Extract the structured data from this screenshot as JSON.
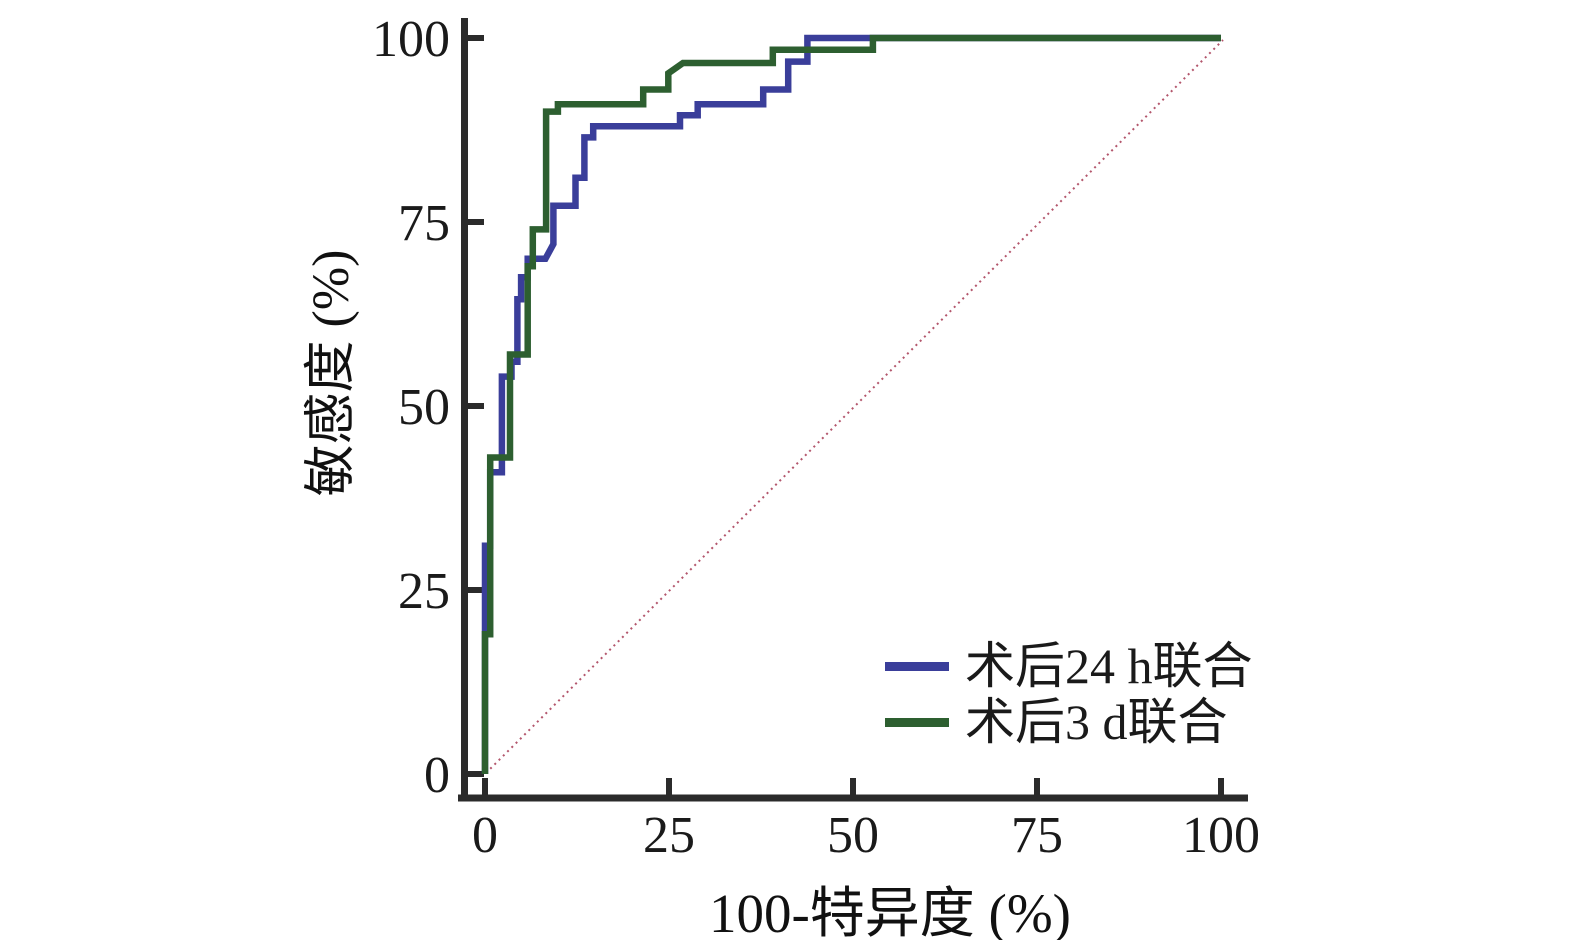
{
  "chart_data": {
    "type": "line",
    "subtype": "roc-step-curves",
    "title": "",
    "xlabel": "100-特异度 (%)",
    "ylabel": "敏感度 (%)",
    "xlim": [
      0,
      100
    ],
    "ylim": [
      0,
      100
    ],
    "x_ticks": [
      "0",
      "25",
      "50",
      "75",
      "100"
    ],
    "y_ticks": [
      "0",
      "25",
      "50",
      "75",
      "100"
    ],
    "x_tick_values": [
      0,
      25,
      50,
      75,
      100
    ],
    "y_tick_values": [
      0,
      25,
      50,
      75,
      100
    ],
    "grid": false,
    "legend_position": "lower-right",
    "axis_color": "#2b2b2b",
    "reference_line": {
      "name": "chance-diagonal",
      "from": [
        0,
        0
      ],
      "to": [
        100,
        100
      ],
      "color": "#b3566c",
      "style": "dotted"
    },
    "series": [
      {
        "name": "术后24 h联合",
        "color": "#3a3e9a",
        "points": [
          [
            0,
            0
          ],
          [
            0,
            31
          ],
          [
            0.7,
            31
          ],
          [
            0.7,
            41
          ],
          [
            2.3,
            41
          ],
          [
            2.3,
            54
          ],
          [
            3.6,
            54
          ],
          [
            3.6,
            56
          ],
          [
            4.4,
            56
          ],
          [
            4.4,
            64.5
          ],
          [
            4.9,
            64.5
          ],
          [
            4.9,
            67.5
          ],
          [
            5.8,
            67.5
          ],
          [
            5.8,
            70
          ],
          [
            8.2,
            70
          ],
          [
            9.3,
            72
          ],
          [
            9.3,
            77.2
          ],
          [
            12.3,
            77.2
          ],
          [
            12.3,
            81
          ],
          [
            13.5,
            81
          ],
          [
            13.5,
            86.5
          ],
          [
            14.7,
            86.5
          ],
          [
            14.7,
            88
          ],
          [
            26.5,
            88
          ],
          [
            26.5,
            89.5
          ],
          [
            28.9,
            89.5
          ],
          [
            28.9,
            91
          ],
          [
            37.8,
            91
          ],
          [
            37.8,
            93
          ],
          [
            41.2,
            93
          ],
          [
            41.2,
            96.8
          ],
          [
            43.8,
            96.8
          ],
          [
            43.8,
            100
          ],
          [
            100,
            100
          ]
        ]
      },
      {
        "name": "术后3 d联合",
        "color": "#2d5f30",
        "points": [
          [
            0,
            0
          ],
          [
            0,
            19
          ],
          [
            0.7,
            19
          ],
          [
            0.7,
            43
          ],
          [
            3.4,
            43
          ],
          [
            3.4,
            57
          ],
          [
            5.8,
            57
          ],
          [
            5.8,
            69
          ],
          [
            6.5,
            69
          ],
          [
            6.5,
            74
          ],
          [
            8.3,
            74
          ],
          [
            8.3,
            90
          ],
          [
            9.9,
            90
          ],
          [
            9.9,
            91
          ],
          [
            21.5,
            91
          ],
          [
            21.5,
            93
          ],
          [
            24.9,
            93
          ],
          [
            24.9,
            95.2
          ],
          [
            26.9,
            96.6
          ],
          [
            39.1,
            96.6
          ],
          [
            39.1,
            98.4
          ],
          [
            52.7,
            98.4
          ],
          [
            52.7,
            100
          ],
          [
            100,
            100
          ]
        ]
      }
    ]
  }
}
